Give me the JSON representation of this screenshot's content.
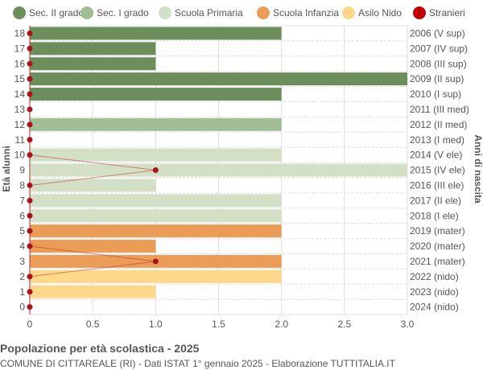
{
  "chart_data": {
    "type": "bar",
    "orientation": "horizontal",
    "title": "Popolazione per età scolastica - 2025",
    "subtitle": "COMUNE DI CITTAREALE (RI) - Dati ISTAT 1° gennaio 2025 - Elaborazione TUTTITALIA.IT",
    "ylabel": "Età alunni",
    "ylabel_right": "Anni di nascita",
    "xlim": [
      0,
      3
    ],
    "xticks": [
      "0",
      "0.5",
      "1.0",
      "1.5",
      "2.0",
      "2.5",
      "3.0"
    ],
    "grid": true,
    "legend_position": "top",
    "legend": [
      {
        "name": "Sec. II grado",
        "color": "#6b8e5b"
      },
      {
        "name": "Sec. I grado",
        "color": "#a1bd93"
      },
      {
        "name": "Scuola Primaria",
        "color": "#d4e0c5"
      },
      {
        "name": "Scuola Infanzia",
        "color": "#eb9d58"
      },
      {
        "name": "Asilo Nido",
        "color": "#fdd88a"
      },
      {
        "name": "Stranieri",
        "color": "#c00000"
      }
    ],
    "ages": [
      18,
      17,
      16,
      15,
      14,
      13,
      12,
      11,
      10,
      9,
      8,
      7,
      6,
      5,
      4,
      3,
      2,
      1,
      0
    ],
    "birth_years": [
      "2006 (V sup)",
      "2007 (IV sup)",
      "2008 (III sup)",
      "2009 (II sup)",
      "2010 (I sup)",
      "2011 (III med)",
      "2012 (II med)",
      "2013 (I med)",
      "2014 (V ele)",
      "2015 (IV ele)",
      "2016 (III ele)",
      "2017 (II ele)",
      "2018 (I ele)",
      "2019 (mater)",
      "2020 (mater)",
      "2021 (mater)",
      "2022 (nido)",
      "2023 (nido)",
      "2024 (nido)"
    ],
    "values": [
      2,
      1,
      1,
      3,
      2,
      0,
      2,
      0,
      2,
      3,
      1,
      2,
      2,
      2,
      1,
      2,
      2,
      1,
      0
    ],
    "category": [
      0,
      0,
      0,
      0,
      0,
      1,
      1,
      1,
      2,
      2,
      2,
      2,
      2,
      3,
      3,
      3,
      4,
      4,
      4
    ],
    "stranieri": [
      0,
      0,
      0,
      0,
      0,
      0,
      0,
      0,
      0,
      1,
      0,
      0,
      0,
      0,
      0,
      1,
      0,
      0,
      0
    ]
  }
}
